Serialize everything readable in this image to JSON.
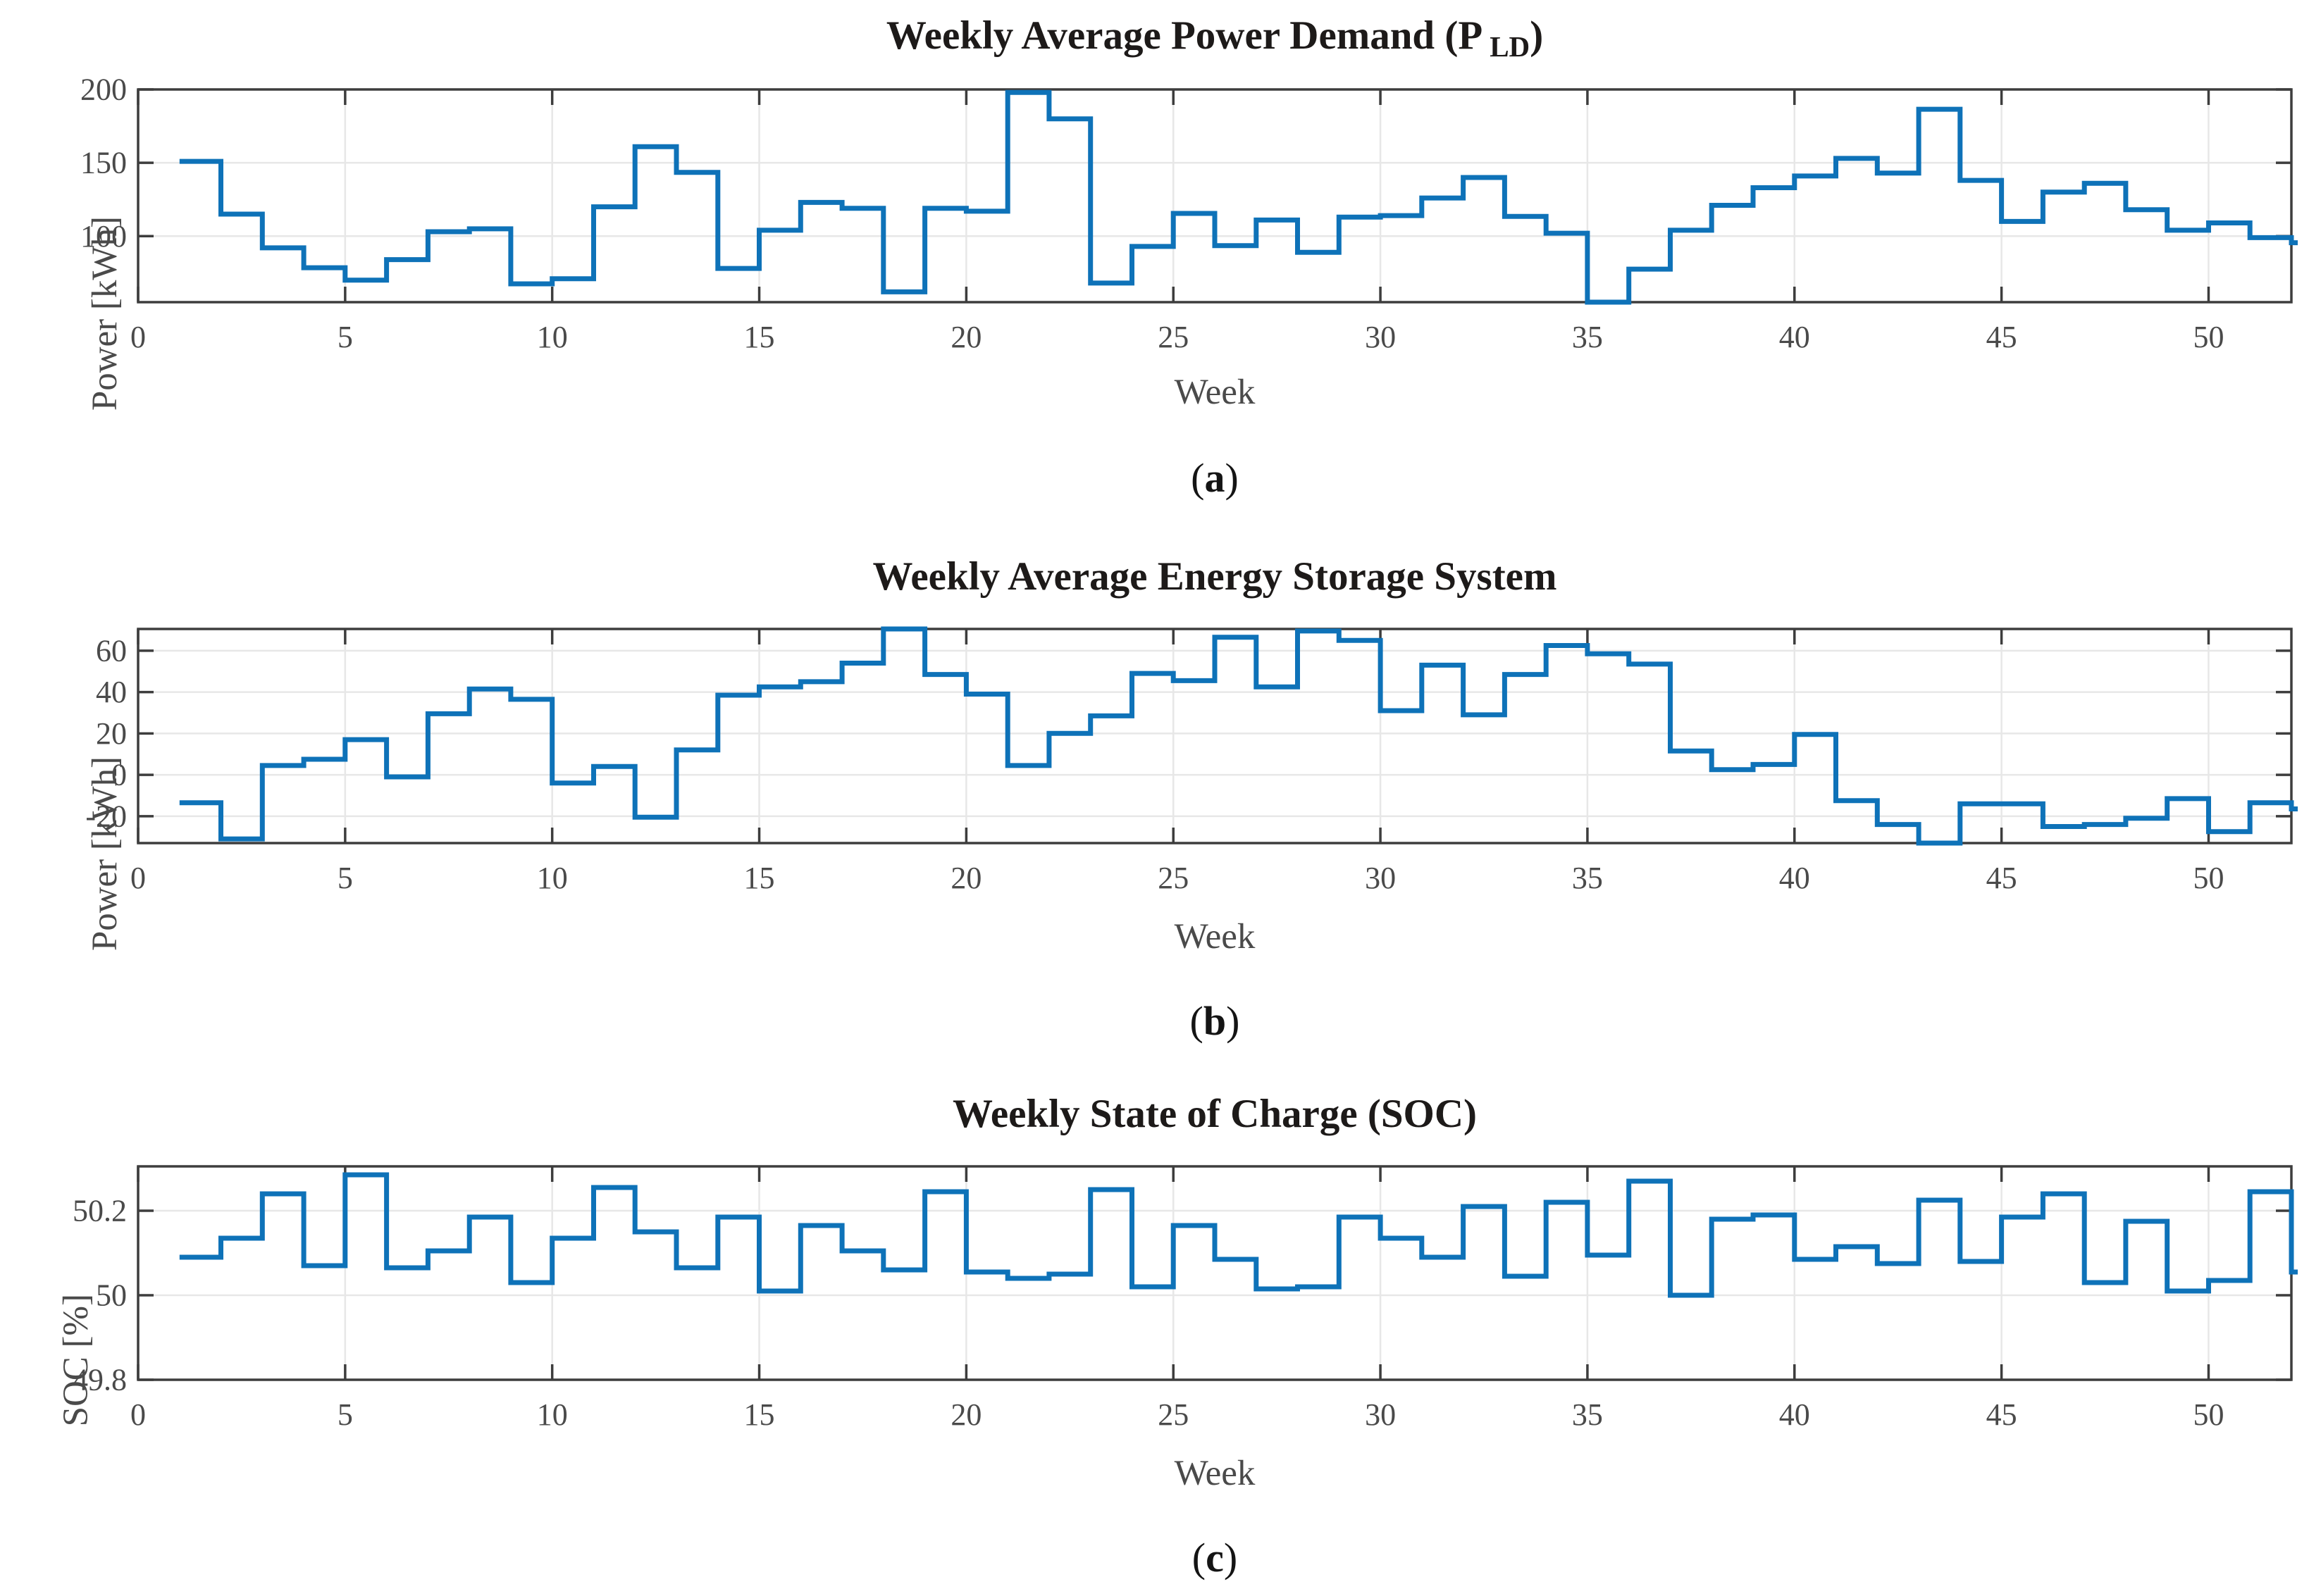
{
  "figure": {
    "background": "#ffffff",
    "colors": {
      "line": "#0e72b8",
      "axis": "#3d3d3d",
      "grid": "#e7e7e7",
      "tick_text": "#4a4a4a",
      "title_text": "#1d1a19"
    }
  },
  "chart_data": [
    {
      "type": "line",
      "style": "stairs",
      "panel": "a",
      "title": "Weekly Average Power Demand (P_LD)",
      "title_parts": {
        "prefix": "Weekly Average Power Demand (P",
        "sub": "LD",
        "suffix": ")"
      },
      "xlabel": "Week",
      "ylabel": "Power [kWh]",
      "panel_label": {
        "open": "(",
        "letter": "a",
        "close": ")"
      },
      "x_start": 1,
      "x_step": 1,
      "xlim": [
        0,
        52
      ],
      "ylim": [
        55,
        200
      ],
      "xticks": [
        0,
        5,
        10,
        15,
        20,
        25,
        30,
        35,
        40,
        45,
        50
      ],
      "yticks": [
        100,
        150,
        200
      ],
      "grid": true,
      "values": [
        151,
        115,
        92,
        78.5,
        70,
        84,
        103,
        105,
        67.5,
        71,
        120,
        161,
        143.5,
        78,
        104,
        123,
        119,
        62,
        119,
        117,
        198,
        180,
        68,
        93,
        115.5,
        93.5,
        111,
        89,
        113,
        114,
        126,
        140,
        113.5,
        102,
        55,
        77.5,
        104,
        121,
        133,
        141,
        153,
        143,
        186.5,
        138,
        110,
        130,
        136,
        118,
        104,
        109,
        99,
        95.5
      ]
    },
    {
      "type": "line",
      "style": "stairs",
      "panel": "b",
      "title": "Weekly Average Energy Storage System",
      "title_parts": {
        "prefix": "Weekly Average Energy Storage System",
        "sub": "",
        "suffix": ""
      },
      "xlabel": "Week",
      "ylabel": "Power [kWh]",
      "panel_label": {
        "open": "(",
        "letter": "b",
        "close": ")"
      },
      "x_start": 1,
      "x_step": 1,
      "xlim": [
        0,
        52
      ],
      "ylim": [
        -33,
        70.5
      ],
      "xticks": [
        0,
        5,
        10,
        15,
        20,
        25,
        30,
        35,
        40,
        45,
        50
      ],
      "yticks": [
        -20,
        0,
        20,
        40,
        60
      ],
      "grid": true,
      "values": [
        -13.5,
        -31,
        4.5,
        7.5,
        17,
        -1,
        29.5,
        41.5,
        36.5,
        -4,
        4,
        -20.5,
        12,
        38.5,
        42.5,
        45,
        54,
        70.5,
        48.5,
        39,
        4.5,
        20,
        28.5,
        49,
        45.5,
        66.5,
        42.5,
        69.5,
        65,
        31,
        53,
        29,
        48.5,
        62.5,
        58.5,
        53.5,
        11.5,
        2.5,
        5,
        19.5,
        -12.5,
        -24,
        -33,
        -14,
        -14,
        -25,
        -24,
        -21,
        -11.5,
        -27.5,
        -13.5,
        -16.5
      ]
    },
    {
      "type": "line",
      "style": "stairs",
      "panel": "c",
      "title": "Weekly State of Charge (SOC)",
      "title_parts": {
        "prefix": "Weekly State of Charge (SOC)",
        "sub": "",
        "suffix": ""
      },
      "xlabel": "Week",
      "ylabel": "SOC [%]",
      "panel_label": {
        "open": "(",
        "letter": "c",
        "close": ")"
      },
      "x_start": 1,
      "x_step": 1,
      "xlim": [
        0,
        52
      ],
      "ylim": [
        49.8,
        50.305
      ],
      "xticks": [
        0,
        5,
        10,
        15,
        20,
        25,
        30,
        35,
        40,
        45,
        50
      ],
      "yticks": [
        49.8,
        50,
        50.2
      ],
      "grid": true,
      "values": [
        50.09,
        50.135,
        50.24,
        50.07,
        50.285,
        50.065,
        50.105,
        50.185,
        50.03,
        50.135,
        50.255,
        50.15,
        50.065,
        50.185,
        50.01,
        50.165,
        50.105,
        50.06,
        50.245,
        50.055,
        50.04,
        50.05,
        50.25,
        50.02,
        50.165,
        50.085,
        50.015,
        50.02,
        50.185,
        50.135,
        50.09,
        50.21,
        50.045,
        50.22,
        50.095,
        50.27,
        50.0,
        50.18,
        50.19,
        50.085,
        50.115,
        50.075,
        50.225,
        50.08,
        50.185,
        50.24,
        50.03,
        50.175,
        50.01,
        50.035,
        50.245,
        50.055
      ]
    }
  ]
}
